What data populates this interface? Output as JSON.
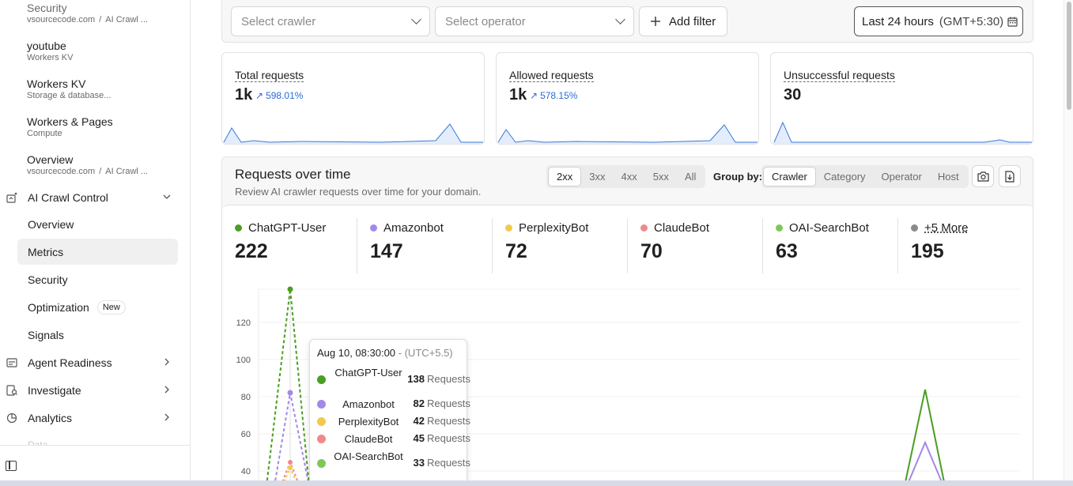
{
  "sidebar": {
    "top_items": [
      {
        "title": "Security",
        "sub_a": "vsourcecode.com",
        "sub_sep": "/",
        "sub_b": "AI Crawl ..."
      },
      {
        "title": "youtube",
        "sub": "Workers KV"
      },
      {
        "title": "Workers KV",
        "sub": "Storage & database..."
      },
      {
        "title": "Workers & Pages",
        "sub": "Compute"
      },
      {
        "title": "Overview",
        "sub_a": "vsourcecode.com",
        "sub_sep": "/",
        "sub_b": "AI Crawl ..."
      }
    ],
    "section_ai": {
      "label": "AI Crawl Control",
      "icon": "ai-crawl-icon"
    },
    "sub_items": [
      "Overview",
      "Metrics",
      "Security",
      "Optimization",
      "Signals"
    ],
    "badge_new": "New",
    "sections": [
      {
        "label": "Agent Readiness",
        "icon": "agent-icon"
      },
      {
        "label": "Investigate",
        "icon": "investigate-icon"
      },
      {
        "label": "Analytics",
        "icon": "analytics-icon"
      }
    ],
    "cut_label": "Data"
  },
  "filters": {
    "crawler_placeholder": "Select crawler",
    "operator_placeholder": "Select operator",
    "add_filter": "Add filter",
    "time_range": "Last 24 hours",
    "timezone": "(GMT+5:30)"
  },
  "cards": [
    {
      "label": "Total requests",
      "value": "1k",
      "change": "598.01%"
    },
    {
      "label": "Allowed requests",
      "value": "1k",
      "change": "578.15%"
    },
    {
      "label": "Unsuccessful requests",
      "value": "30"
    }
  ],
  "panel": {
    "title": "Requests over time",
    "description": "Review AI crawler requests over time for your domain.",
    "status_tabs": [
      "2xx",
      "3xx",
      "4xx",
      "5xx",
      "All"
    ],
    "group_by_label": "Group by:",
    "group_tabs": [
      "Crawler",
      "Category",
      "Operator",
      "Host"
    ]
  },
  "stats": [
    {
      "name": "ChatGPT-User",
      "value": "222",
      "color": "#4a9e22"
    },
    {
      "name": "Amazonbot",
      "value": "147",
      "color": "#a18ae6"
    },
    {
      "name": "PerplexityBot",
      "value": "72",
      "color": "#f2c94c"
    },
    {
      "name": "ClaudeBot",
      "value": "70",
      "color": "#f08a8a"
    },
    {
      "name": "OAI-SearchBot",
      "value": "63",
      "color": "#7ec85a"
    },
    {
      "name": "+5 More",
      "value": "195",
      "color": "#8a8a8a"
    }
  ],
  "chart_data": {
    "type": "line",
    "y_ticks": [
      "120",
      "100",
      "80",
      "60",
      "40"
    ],
    "series": [
      {
        "name": "ChatGPT-User",
        "peak1": 138,
        "peak2": 84
      },
      {
        "name": "Amazonbot",
        "peak1": 82,
        "peak2": 57
      },
      {
        "name": "PerplexityBot",
        "peak1": 42
      },
      {
        "name": "ClaudeBot",
        "peak1": 45
      }
    ]
  },
  "tooltip": {
    "date": "Aug 10, 08:30:00",
    "tz": "- (UTC+5.5)",
    "unit": "Requests",
    "rows": [
      {
        "name": "ChatGPT-User",
        "value": "138",
        "color": "#4a9e22"
      },
      {
        "name": "Amazonbot",
        "value": "82",
        "color": "#a18ae6"
      },
      {
        "name": "PerplexityBot",
        "value": "42",
        "color": "#f2c94c"
      },
      {
        "name": "ClaudeBot",
        "value": "45",
        "color": "#f08a8a"
      },
      {
        "name": "OAI-SearchBot",
        "value": "33",
        "color": "#7ec85a"
      }
    ]
  }
}
